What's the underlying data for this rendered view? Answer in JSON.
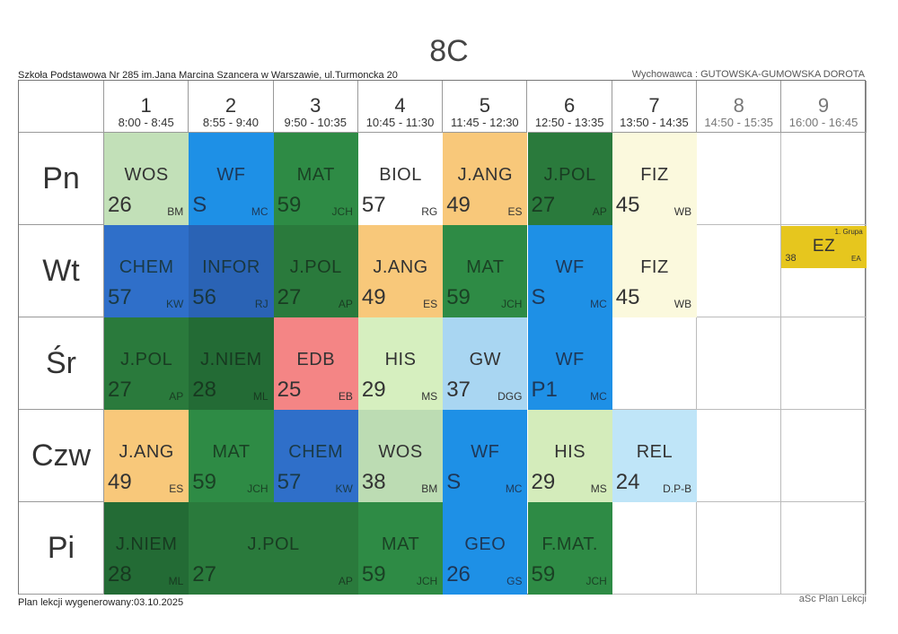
{
  "title": "8C",
  "school": "Szkoła Podstawowa Nr 285 im.Jana Marcina Szancera w Warszawie, ul.Turmoncka 20",
  "teacher_label": "Wychowawca : GUTOWSKA-GUMOWSKA DOROTA",
  "footer_left": "Plan lekcji wygenerowany:03.10.2025",
  "footer_right": "aSc Plan Lekcji",
  "periods": [
    {
      "num": "1",
      "time": "8:00 - 8:45"
    },
    {
      "num": "2",
      "time": "8:55 - 9:40"
    },
    {
      "num": "3",
      "time": "9:50 - 10:35"
    },
    {
      "num": "4",
      "time": "10:45 - 11:30"
    },
    {
      "num": "5",
      "time": "11:45 - 12:30"
    },
    {
      "num": "6",
      "time": "12:50 - 13:35"
    },
    {
      "num": "7",
      "time": "13:50 - 14:35"
    },
    {
      "num": "8",
      "time": "14:50 - 15:35"
    },
    {
      "num": "9",
      "time": "16:00 - 16:45"
    }
  ],
  "days": [
    "Pn",
    "Wt",
    "Śr",
    "Czw",
    "Pi"
  ],
  "colors": {
    "lightgreen": "#c2e0b8",
    "blue": "#1e90e6",
    "darkgreen": "#2e8b45",
    "white": "#ffffff",
    "orange": "#f8c87a",
    "forest": "#2a7a3c",
    "cream": "#fbf9dd",
    "royal": "#2f6fc9",
    "navy": "#2a63b5",
    "salmon": "#f48585",
    "mint": "#d6efbf",
    "sky": "#a9d6f2",
    "sage": "#bcdcb3",
    "palelime": "#d4ecbb",
    "paleblue": "#bfe5f8",
    "deepgreen": "#236b35",
    "yellow": "#e6c61e"
  },
  "lessons": [
    {
      "day": 0,
      "period": 0,
      "span": 1,
      "subject": "WOS",
      "room": "26",
      "teacher": "BM",
      "color": "#c2e0b8"
    },
    {
      "day": 0,
      "period": 1,
      "span": 1,
      "subject": "WF",
      "room": "S",
      "teacher": "MC",
      "color": "#1e90e6"
    },
    {
      "day": 0,
      "period": 2,
      "span": 1,
      "subject": "MAT",
      "room": "59",
      "teacher": "JCH",
      "color": "#2e8b45"
    },
    {
      "day": 0,
      "period": 3,
      "span": 1,
      "subject": "BIOL",
      "room": "57",
      "teacher": "RG",
      "color": "#ffffff"
    },
    {
      "day": 0,
      "period": 4,
      "span": 1,
      "subject": "J.ANG",
      "room": "49",
      "teacher": "ES",
      "color": "#f8c87a"
    },
    {
      "day": 0,
      "period": 5,
      "span": 1,
      "subject": "J.POL",
      "room": "27",
      "teacher": "AP",
      "color": "#2a7a3c"
    },
    {
      "day": 0,
      "period": 6,
      "span": 1,
      "subject": "FIZ",
      "room": "45",
      "teacher": "WB",
      "color": "#fbf9dd"
    },
    {
      "day": 1,
      "period": 0,
      "span": 1,
      "subject": "CHEM",
      "room": "57",
      "teacher": "KW",
      "color": "#2f6fc9"
    },
    {
      "day": 1,
      "period": 1,
      "span": 1,
      "subject": "INFOR",
      "room": "56",
      "teacher": "RJ",
      "color": "#2a63b5"
    },
    {
      "day": 1,
      "period": 2,
      "span": 1,
      "subject": "J.POL",
      "room": "27",
      "teacher": "AP",
      "color": "#2a7a3c"
    },
    {
      "day": 1,
      "period": 3,
      "span": 1,
      "subject": "J.ANG",
      "room": "49",
      "teacher": "ES",
      "color": "#f8c87a"
    },
    {
      "day": 1,
      "period": 4,
      "span": 1,
      "subject": "MAT",
      "room": "59",
      "teacher": "JCH",
      "color": "#2e8b45"
    },
    {
      "day": 1,
      "period": 5,
      "span": 1,
      "subject": "WF",
      "room": "S",
      "teacher": "MC",
      "color": "#1e90e6"
    },
    {
      "day": 1,
      "period": 6,
      "span": 1,
      "subject": "FIZ",
      "room": "45",
      "teacher": "WB",
      "color": "#fbf9dd"
    },
    {
      "day": 1,
      "period": 8,
      "span": 1,
      "subject": "EZ",
      "room": "38",
      "teacher": "EA",
      "group": "1. Grupa",
      "color": "#e6c61e",
      "small": true
    },
    {
      "day": 2,
      "period": 0,
      "span": 1,
      "subject": "J.POL",
      "room": "27",
      "teacher": "AP",
      "color": "#2a7a3c"
    },
    {
      "day": 2,
      "period": 1,
      "span": 1,
      "subject": "J.NIEM",
      "room": "28",
      "teacher": "ML",
      "color": "#236b35"
    },
    {
      "day": 2,
      "period": 2,
      "span": 1,
      "subject": "EDB",
      "room": "25",
      "teacher": "EB",
      "color": "#f48585"
    },
    {
      "day": 2,
      "period": 3,
      "span": 1,
      "subject": "HIS",
      "room": "29",
      "teacher": "MS",
      "color": "#d6efbf"
    },
    {
      "day": 2,
      "period": 4,
      "span": 1,
      "subject": "GW",
      "room": "37",
      "teacher": "DGG",
      "color": "#a9d6f2"
    },
    {
      "day": 2,
      "period": 5,
      "span": 1,
      "subject": "WF",
      "room": "P1",
      "teacher": "MC",
      "color": "#1e90e6"
    },
    {
      "day": 3,
      "period": 0,
      "span": 1,
      "subject": "J.ANG",
      "room": "49",
      "teacher": "ES",
      "color": "#f8c87a"
    },
    {
      "day": 3,
      "period": 1,
      "span": 1,
      "subject": "MAT",
      "room": "59",
      "teacher": "JCH",
      "color": "#2e8b45"
    },
    {
      "day": 3,
      "period": 2,
      "span": 1,
      "subject": "CHEM",
      "room": "57",
      "teacher": "KW",
      "color": "#2f6fc9"
    },
    {
      "day": 3,
      "period": 3,
      "span": 1,
      "subject": "WOS",
      "room": "38",
      "teacher": "BM",
      "color": "#bcdcb3"
    },
    {
      "day": 3,
      "period": 4,
      "span": 1,
      "subject": "WF",
      "room": "S",
      "teacher": "MC",
      "color": "#1e90e6"
    },
    {
      "day": 3,
      "period": 5,
      "span": 1,
      "subject": "HIS",
      "room": "29",
      "teacher": "MS",
      "color": "#d4ecbb"
    },
    {
      "day": 3,
      "period": 6,
      "span": 1,
      "subject": "REL",
      "room": "24",
      "teacher": "D.P-B",
      "color": "#bfe5f8"
    },
    {
      "day": 4,
      "period": 0,
      "span": 1,
      "subject": "J.NIEM",
      "room": "28",
      "teacher": "ML",
      "color": "#236b35"
    },
    {
      "day": 4,
      "period": 1,
      "span": 2,
      "subject": "J.POL",
      "room": "27",
      "teacher": "AP",
      "color": "#2a7a3c"
    },
    {
      "day": 4,
      "period": 3,
      "span": 1,
      "subject": "MAT",
      "room": "59",
      "teacher": "JCH",
      "color": "#2e8b45"
    },
    {
      "day": 4,
      "period": 4,
      "span": 1,
      "subject": "GEO",
      "room": "26",
      "teacher": "GS",
      "color": "#1e90e6"
    },
    {
      "day": 4,
      "period": 5,
      "span": 1,
      "subject": "F.MAT.",
      "room": "59",
      "teacher": "JCH",
      "color": "#2e8b45"
    }
  ]
}
